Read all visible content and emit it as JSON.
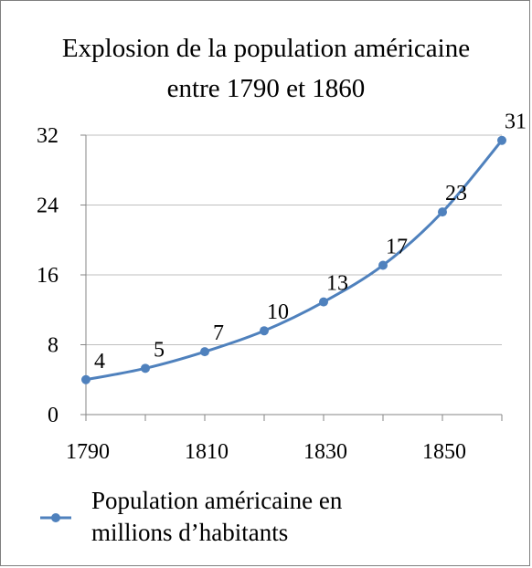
{
  "chart_data": {
    "type": "line",
    "title_lines": [
      "Explosion de la population américaine",
      "entre 1790 et 1860"
    ],
    "x": [
      1790,
      1800,
      1810,
      1820,
      1830,
      1840,
      1850,
      1860
    ],
    "series": [
      {
        "name_lines": [
          "Population américaine en",
          "millions d’habitants"
        ],
        "values": [
          4,
          5.3,
          7.2,
          9.6,
          12.9,
          17.1,
          23.2,
          31.4
        ],
        "labels": [
          "4",
          "5",
          "7",
          "10",
          "13",
          "17",
          "23",
          "31"
        ],
        "color": "#4f81bd"
      }
    ],
    "xlim": [
      1790,
      1860
    ],
    "ylim": [
      0,
      32
    ],
    "x_ticks": [
      "1790",
      "1810",
      "1830",
      "1850"
    ],
    "y_ticks": [
      "0",
      "8",
      "16",
      "24",
      "32"
    ],
    "grid": "horizontal",
    "legend_position": "bottom-left"
  }
}
